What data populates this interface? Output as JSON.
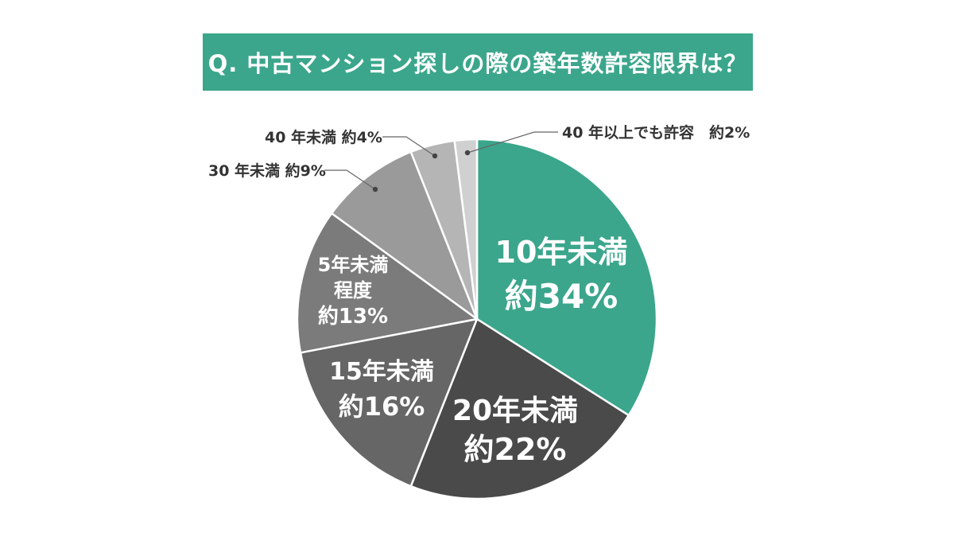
{
  "chart_data": {
    "type": "pie",
    "title": "Q. 中古マンション探しの際の築年数許容限界は？",
    "slices": [
      {
        "name": "10年未満",
        "value": 34,
        "value_label": "約34%",
        "color": "#3ba68c"
      },
      {
        "name": "20年未満",
        "value": 22,
        "value_label": "約22%",
        "color": "#4a4a4a"
      },
      {
        "name": "15年未満",
        "value": 16,
        "value_label": "約16%",
        "color": "#666666"
      },
      {
        "name": "5年未満程度",
        "value": 13,
        "value_label": "約13%",
        "color": "#7b7b7b"
      },
      {
        "name": "30年未満",
        "value": 9,
        "value_label": "約9%",
        "color": "#9a9a9a"
      },
      {
        "name": "40年未満",
        "value": 4,
        "value_label": "約4%",
        "color": "#b5b5b5"
      },
      {
        "name": "40年以上でも許容",
        "value": 2,
        "value_label": "約2%",
        "color": "#d0d0d0"
      }
    ],
    "labels": {
      "s10_line1": "10年未満",
      "s10_line2": "約34%",
      "s20_line1": "20年未満",
      "s20_line2": "約22%",
      "s15_line1": "15年未満",
      "s15_line2": "約16%",
      "s5_line1": "5年未満",
      "s5_line2": "程度",
      "s5_line3": "約13%",
      "s30": "30 年未満 約9%",
      "s40": "40 年未満 約4%",
      "s40plus": "40 年以上でも許容　約2%"
    }
  }
}
